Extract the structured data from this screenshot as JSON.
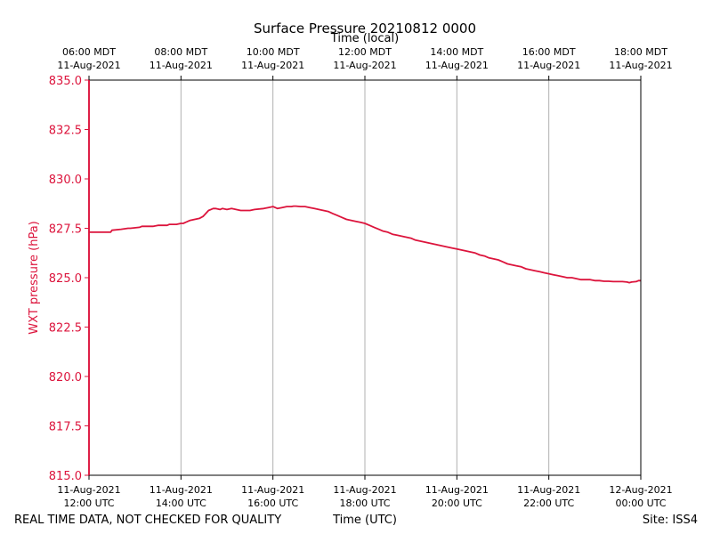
{
  "chart_data": {
    "type": "line",
    "title": "Surface Pressure 20210812 0000",
    "xlabel": "Time (UTC)",
    "xlabel_top": "Time (local)",
    "ylabel": "WXT pressure (hPa)",
    "footer_left": "REAL TIME DATA, NOT CHECKED FOR QUALITY",
    "footer_right": "Site: ISS4",
    "xlim": [
      12.0,
      24.0
    ],
    "ylim": [
      815.0,
      835.0
    ],
    "grid": true,
    "colors": {
      "series": "#dc143c",
      "grid": "#b0b0b0",
      "axis": "#000000"
    },
    "yticks": [
      {
        "value": 815.0,
        "label": "815.0"
      },
      {
        "value": 817.5,
        "label": "817.5"
      },
      {
        "value": 820.0,
        "label": "820.0"
      },
      {
        "value": 822.5,
        "label": "822.5"
      },
      {
        "value": 825.0,
        "label": "825.0"
      },
      {
        "value": 827.5,
        "label": "827.5"
      },
      {
        "value": 830.0,
        "label": "830.0"
      },
      {
        "value": 832.5,
        "label": "832.5"
      },
      {
        "value": 835.0,
        "label": "835.0"
      }
    ],
    "xticks_bottom": [
      {
        "value": 12,
        "line1": "11-Aug-2021",
        "line2": "12:00 UTC"
      },
      {
        "value": 14,
        "line1": "11-Aug-2021",
        "line2": "14:00 UTC"
      },
      {
        "value": 16,
        "line1": "11-Aug-2021",
        "line2": "16:00 UTC"
      },
      {
        "value": 18,
        "line1": "11-Aug-2021",
        "line2": "18:00 UTC"
      },
      {
        "value": 20,
        "line1": "11-Aug-2021",
        "line2": "20:00 UTC"
      },
      {
        "value": 22,
        "line1": "11-Aug-2021",
        "line2": "22:00 UTC"
      },
      {
        "value": 24,
        "line1": "12-Aug-2021",
        "line2": "00:00 UTC"
      }
    ],
    "xticks_top": [
      {
        "value": 12,
        "line1": "06:00 MDT",
        "line2": "11-Aug-2021"
      },
      {
        "value": 14,
        "line1": "08:00 MDT",
        "line2": "11-Aug-2021"
      },
      {
        "value": 16,
        "line1": "10:00 MDT",
        "line2": "11-Aug-2021"
      },
      {
        "value": 18,
        "line1": "12:00 MDT",
        "line2": "11-Aug-2021"
      },
      {
        "value": 20,
        "line1": "14:00 MDT",
        "line2": "11-Aug-2021"
      },
      {
        "value": 22,
        "line1": "16:00 MDT",
        "line2": "11-Aug-2021"
      },
      {
        "value": 24,
        "line1": "18:00 MDT",
        "line2": "11-Aug-2021"
      }
    ],
    "series": [
      {
        "x": [
          12.0,
          12.0,
          12.0,
          12.02,
          12.1,
          12.3,
          12.47,
          12.5,
          12.7,
          12.85,
          12.9,
          13.1,
          13.15,
          13.3,
          13.4,
          13.5,
          13.7,
          13.75,
          13.8,
          13.9,
          14.0,
          14.05,
          14.1,
          14.15,
          14.2,
          14.3,
          14.4,
          14.48,
          14.52,
          14.6,
          14.65,
          14.7,
          14.75,
          14.85,
          14.9,
          15.0,
          15.1,
          15.2,
          15.3,
          15.5,
          15.6,
          15.8,
          15.9,
          16.0,
          16.05,
          16.1,
          16.2,
          16.3,
          16.4,
          16.45,
          16.5,
          16.6,
          16.7,
          16.8,
          16.9,
          17.0,
          17.1,
          17.2,
          17.3,
          17.4,
          17.5,
          17.6,
          17.7,
          17.8,
          17.9,
          18.0,
          18.1,
          18.2,
          18.3,
          18.4,
          18.5,
          18.6,
          18.7,
          18.8,
          18.9,
          19.0,
          19.1,
          19.2,
          19.3,
          19.4,
          19.5,
          19.6,
          19.7,
          19.8,
          19.9,
          20.0,
          20.1,
          20.2,
          20.3,
          20.4,
          20.5,
          20.6,
          20.7,
          20.8,
          20.9,
          21.0,
          21.1,
          21.2,
          21.3,
          21.4,
          21.5,
          21.6,
          21.7,
          21.8,
          21.9,
          22.0,
          22.1,
          22.2,
          22.3,
          22.4,
          22.5,
          22.6,
          22.7,
          22.8,
          22.9,
          23.0,
          23.1,
          23.2,
          23.3,
          23.4,
          23.5,
          23.6,
          23.7,
          23.75,
          23.8,
          23.9,
          23.95,
          24.0
        ],
        "y": [
          815.0,
          835.0,
          827.3,
          827.3,
          827.3,
          827.3,
          827.3,
          827.4,
          827.45,
          827.5,
          827.5,
          827.55,
          827.6,
          827.6,
          827.6,
          827.65,
          827.65,
          827.7,
          827.7,
          827.7,
          827.75,
          827.75,
          827.8,
          827.85,
          827.9,
          827.95,
          828.0,
          828.1,
          828.2,
          828.4,
          828.45,
          828.5,
          828.5,
          828.45,
          828.5,
          828.45,
          828.5,
          828.45,
          828.4,
          828.4,
          828.45,
          828.5,
          828.55,
          828.6,
          828.55,
          828.5,
          828.55,
          828.6,
          828.6,
          828.62,
          828.62,
          828.6,
          828.6,
          828.55,
          828.5,
          828.45,
          828.4,
          828.35,
          828.25,
          828.15,
          828.05,
          827.95,
          827.9,
          827.85,
          827.8,
          827.75,
          827.65,
          827.55,
          827.45,
          827.35,
          827.3,
          827.2,
          827.15,
          827.1,
          827.05,
          827.0,
          826.9,
          826.85,
          826.8,
          826.75,
          826.7,
          826.65,
          826.6,
          826.55,
          826.5,
          826.45,
          826.4,
          826.35,
          826.3,
          826.25,
          826.15,
          826.1,
          826.0,
          825.95,
          825.9,
          825.8,
          825.7,
          825.65,
          825.6,
          825.55,
          825.45,
          825.4,
          825.35,
          825.3,
          825.25,
          825.2,
          825.15,
          825.1,
          825.05,
          825.0,
          825.0,
          824.95,
          824.9,
          824.9,
          824.9,
          824.85,
          824.85,
          824.82,
          824.82,
          824.8,
          824.8,
          824.8,
          824.78,
          824.75,
          824.78,
          824.8,
          824.85,
          824.85
        ]
      }
    ]
  }
}
